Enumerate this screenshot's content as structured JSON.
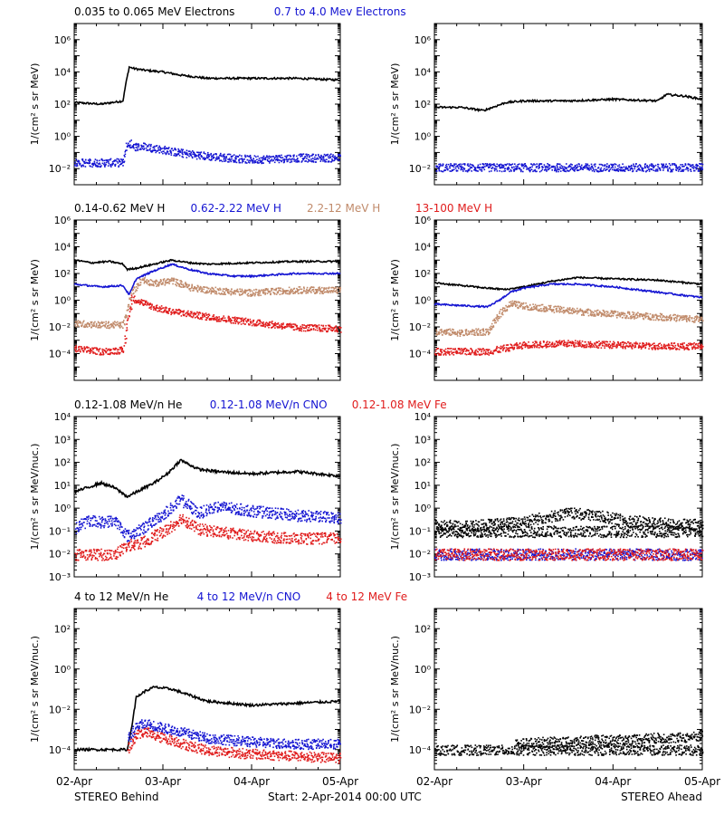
{
  "footer": {
    "left_label": "STEREO Behind",
    "center_label": "Start:  2-Apr-2014 00:00 UTC",
    "right_label": "STEREO Ahead"
  },
  "colors": {
    "black": "#000000",
    "blue": "#1414d2",
    "tan": "#c08a6a",
    "red": "#e01c1c"
  },
  "chart_data": [
    {
      "id": "electrons",
      "type": "scatter",
      "ylabel": "1/(cm² s sr MeV)",
      "ylim_log10": [
        -3,
        7
      ],
      "ytick_exponents": [
        -2,
        0,
        2,
        4,
        6
      ],
      "y_scale": "log",
      "x_tick_labels": [
        "02-Apr",
        "03-Apr",
        "04-Apr",
        "05-Apr"
      ],
      "x_range_days": [
        0,
        3
      ],
      "legend": [
        {
          "label": "0.035 to 0.065 MeV Electrons",
          "color": "black"
        },
        {
          "label": "0.7 to 4.0 Mev Electrons",
          "color": "blue"
        }
      ],
      "panels": [
        {
          "spacecraft": "STEREO Behind",
          "series": [
            {
              "color": "black",
              "style": "line",
              "x": [
                0,
                0.3,
                0.55,
                0.58,
                0.62,
                0.68,
                0.8,
                1.0,
                1.2,
                1.5,
                2.0,
                2.5,
                3.0
              ],
              "y_log10": [
                2.1,
                2.0,
                2.2,
                3.2,
                4.3,
                4.2,
                4.1,
                4.0,
                3.8,
                3.6,
                3.6,
                3.6,
                3.5
              ]
            },
            {
              "color": "blue",
              "style": "dots",
              "x": [
                0,
                0.3,
                0.55,
                0.58,
                0.62,
                0.68,
                0.8,
                1.0,
                1.2,
                1.5,
                2.0,
                2.5,
                3.0
              ],
              "y_log10": [
                -1.6,
                -1.6,
                -1.6,
                -0.6,
                -0.4,
                -0.6,
                -0.6,
                -0.8,
                -1.0,
                -1.2,
                -1.4,
                -1.3,
                -1.3
              ]
            }
          ]
        },
        {
          "spacecraft": "STEREO Ahead",
          "series": [
            {
              "color": "black",
              "style": "line",
              "x": [
                0,
                0.3,
                0.55,
                0.6,
                0.8,
                1.0,
                1.5,
                2.0,
                2.5,
                2.6,
                2.8,
                3.0
              ],
              "y_log10": [
                1.8,
                1.8,
                1.6,
                1.7,
                2.1,
                2.2,
                2.2,
                2.3,
                2.2,
                2.6,
                2.5,
                2.3
              ]
            },
            {
              "color": "blue",
              "style": "dots",
              "x": [
                0,
                0.5,
                1.0,
                1.5,
                2.0,
                2.5,
                3.0
              ],
              "y_log10": [
                -1.9,
                -1.9,
                -1.9,
                -1.9,
                -1.9,
                -1.9,
                -1.9
              ]
            }
          ]
        }
      ]
    },
    {
      "id": "protons",
      "type": "scatter",
      "ylabel": "1/(cm² s sr MeV)",
      "ylim_log10": [
        -6,
        6
      ],
      "ytick_exponents": [
        -4,
        -2,
        0,
        2,
        4,
        6
      ],
      "y_scale": "log",
      "x_tick_labels": [
        "02-Apr",
        "03-Apr",
        "04-Apr",
        "05-Apr"
      ],
      "x_range_days": [
        0,
        3
      ],
      "legend": [
        {
          "label": "0.14-0.62 MeV H",
          "color": "black"
        },
        {
          "label": "0.62-2.22 MeV H",
          "color": "blue"
        },
        {
          "label": "2.2-12 MeV H",
          "color": "tan"
        },
        {
          "label": "13-100 MeV H",
          "color": "red"
        }
      ],
      "panels": [
        {
          "spacecraft": "STEREO Behind",
          "series": [
            {
              "color": "black",
              "style": "line",
              "x": [
                0,
                0.2,
                0.4,
                0.55,
                0.6,
                0.7,
                0.9,
                1.1,
                1.3,
                1.5,
                2.0,
                2.5,
                3.0
              ],
              "y_log10": [
                3.0,
                2.8,
                2.9,
                2.7,
                2.3,
                2.4,
                2.7,
                3.0,
                2.8,
                2.7,
                2.8,
                2.9,
                2.9
              ]
            },
            {
              "color": "blue",
              "style": "line",
              "x": [
                0,
                0.3,
                0.55,
                0.62,
                0.7,
                0.9,
                1.1,
                1.3,
                1.5,
                1.8,
                2.0,
                2.5,
                3.0
              ],
              "y_log10": [
                1.2,
                1.0,
                1.1,
                0.4,
                1.6,
                2.2,
                2.7,
                2.3,
                2.0,
                1.8,
                1.8,
                2.0,
                2.0
              ]
            },
            {
              "color": "tan",
              "style": "dots",
              "x": [
                0,
                0.3,
                0.55,
                0.6,
                0.65,
                0.75,
                0.9,
                1.1,
                1.3,
                1.5,
                2.0,
                2.5,
                3.0
              ],
              "y_log10": [
                -1.7,
                -1.8,
                -1.8,
                -0.6,
                0.6,
                1.6,
                1.3,
                1.5,
                1.0,
                0.8,
                0.6,
                0.8,
                0.8
              ]
            },
            {
              "color": "red",
              "style": "dots",
              "x": [
                0,
                0.3,
                0.55,
                0.6,
                0.65,
                0.75,
                0.9,
                1.1,
                1.3,
                1.5,
                2.0,
                2.5,
                3.0
              ],
              "y_log10": [
                -3.6,
                -3.8,
                -3.7,
                -1.5,
                0.2,
                -0.1,
                -0.5,
                -0.8,
                -1.0,
                -1.2,
                -1.6,
                -2.0,
                -2.1
              ]
            }
          ]
        },
        {
          "spacecraft": "STEREO Ahead",
          "series": [
            {
              "color": "black",
              "style": "line",
              "x": [
                0,
                0.3,
                0.6,
                0.8,
                1.0,
                1.3,
                1.6,
                2.0,
                2.5,
                3.0
              ],
              "y_log10": [
                1.3,
                1.1,
                0.9,
                0.8,
                1.0,
                1.4,
                1.7,
                1.6,
                1.5,
                1.2
              ]
            },
            {
              "color": "blue",
              "style": "line",
              "x": [
                0,
                0.3,
                0.6,
                0.75,
                0.85,
                1.0,
                1.3,
                1.6,
                2.0,
                2.5,
                3.0
              ],
              "y_log10": [
                -0.3,
                -0.4,
                -0.5,
                0.1,
                0.6,
                0.9,
                1.2,
                1.2,
                1.0,
                0.6,
                0.2
              ]
            },
            {
              "color": "tan",
              "style": "dots",
              "x": [
                0,
                0.3,
                0.6,
                0.75,
                0.85,
                1.0,
                1.3,
                1.6,
                2.0,
                2.5,
                3.0
              ],
              "y_log10": [
                -2.3,
                -2.4,
                -2.3,
                -0.8,
                -0.2,
                -0.4,
                -0.6,
                -0.8,
                -1.0,
                -1.2,
                -1.4
              ]
            },
            {
              "color": "red",
              "style": "dots",
              "x": [
                0,
                0.3,
                0.6,
                0.75,
                1.0,
                1.5,
                2.0,
                2.5,
                3.0
              ],
              "y_log10": [
                -3.8,
                -3.8,
                -3.8,
                -3.6,
                -3.3,
                -3.2,
                -3.3,
                -3.4,
                -3.4
              ]
            }
          ]
        }
      ]
    },
    {
      "id": "heavy_ions_low",
      "type": "scatter",
      "ylabel": "1/(cm² s sr MeV/nuc.)",
      "ylim_log10": [
        -3,
        4
      ],
      "ytick_exponents": [
        -3,
        -2,
        -1,
        0,
        1,
        2,
        3,
        4
      ],
      "y_scale": "log",
      "x_tick_labels": [
        "02-Apr",
        "03-Apr",
        "04-Apr",
        "05-Apr"
      ],
      "x_range_days": [
        0,
        3
      ],
      "legend": [
        {
          "label": "0.12-1.08 MeV/n He",
          "color": "black"
        },
        {
          "label": "0.12-1.08 MeV/n CNO",
          "color": "blue"
        },
        {
          "label": "0.12-1.08 MeV Fe",
          "color": "red"
        }
      ],
      "panels": [
        {
          "spacecraft": "STEREO Behind",
          "series": [
            {
              "color": "black",
              "style": "line",
              "x": [
                0,
                0.15,
                0.3,
                0.45,
                0.6,
                0.75,
                0.9,
                1.05,
                1.2,
                1.4,
                1.6,
                2.0,
                2.5,
                3.0
              ],
              "y_log10": [
                0.7,
                0.9,
                1.1,
                0.9,
                0.5,
                0.8,
                1.1,
                1.5,
                2.1,
                1.7,
                1.6,
                1.5,
                1.6,
                1.4
              ]
            },
            {
              "color": "blue",
              "style": "dots",
              "x": [
                0,
                0.15,
                0.3,
                0.45,
                0.6,
                0.75,
                0.9,
                1.05,
                1.2,
                1.4,
                1.6,
                2.0,
                2.5,
                3.0
              ],
              "y_log10": [
                -0.9,
                -0.5,
                -0.6,
                -0.5,
                -1.2,
                -0.9,
                -0.5,
                -0.1,
                0.4,
                -0.2,
                0.1,
                -0.1,
                -0.3,
                -0.4
              ]
            },
            {
              "color": "red",
              "style": "dots",
              "x": [
                0,
                0.15,
                0.3,
                0.45,
                0.6,
                0.75,
                0.9,
                1.05,
                1.2,
                1.4,
                1.6,
                2.0,
                2.5,
                3.0
              ],
              "y_log10": [
                -2.0,
                -2.0,
                -2.0,
                -2.0,
                -1.6,
                -1.5,
                -1.2,
                -0.9,
                -0.4,
                -0.9,
                -1.0,
                -1.2,
                -1.3,
                -1.3
              ]
            }
          ]
        },
        {
          "spacecraft": "STEREO Ahead",
          "series": [
            {
              "color": "black",
              "style": "dots",
              "x": [
                0,
                0.3,
                0.6,
                0.9,
                1.2,
                1.5,
                1.8,
                2.1,
                2.4,
                2.7,
                3.0
              ],
              "y_log10": [
                -0.7,
                -0.8,
                -0.7,
                -0.6,
                -0.4,
                -0.2,
                -0.3,
                -0.5,
                -0.6,
                -0.7,
                -0.7
              ]
            },
            {
              "color": "black",
              "style": "dots",
              "x": [
                0,
                0.5,
                1.0,
                1.5,
                2.0,
                2.5,
                3.0
              ],
              "y_log10": [
                -1.0,
                -1.0,
                -1.0,
                -1.0,
                -1.0,
                -1.0,
                -1.0
              ]
            },
            {
              "color": "blue",
              "style": "dots",
              "x": [
                0,
                0.5,
                1.0,
                1.5,
                2.0,
                2.5,
                3.0
              ],
              "y_log10": [
                -2.0,
                -2.0,
                -2.0,
                -2.0,
                -2.0,
                -2.0,
                -2.0
              ]
            },
            {
              "color": "red",
              "style": "dots",
              "x": [
                0,
                0.5,
                1.0,
                1.5,
                2.0,
                2.5,
                3.0
              ],
              "y_log10": [
                -2.0,
                -2.0,
                -2.0,
                -2.0,
                -2.0,
                -2.0,
                -2.0
              ]
            }
          ]
        }
      ]
    },
    {
      "id": "heavy_ions_high",
      "type": "scatter",
      "ylabel": "1/(cm² s sr MeV/nuc.)",
      "ylim_log10": [
        -5,
        3
      ],
      "ytick_exponents": [
        -4,
        -2,
        0,
        2
      ],
      "y_scale": "log",
      "x_tick_labels": [
        "02-Apr",
        "03-Apr",
        "04-Apr",
        "05-Apr"
      ],
      "x_range_days": [
        0,
        3
      ],
      "legend": [
        {
          "label": "4 to 12 MeV/n He",
          "color": "black"
        },
        {
          "label": "4 to 12 MeV/n CNO",
          "color": "blue"
        },
        {
          "label": "4 to 12 MeV Fe",
          "color": "red"
        }
      ],
      "panels": [
        {
          "spacecraft": "STEREO Behind",
          "series": [
            {
              "color": "black",
              "style": "line",
              "x": [
                0,
                0.3,
                0.6,
                0.65,
                0.7,
                0.8,
                0.9,
                1.1,
                1.3,
                1.5,
                2.0,
                2.5,
                3.0
              ],
              "y_log10": [
                -4.0,
                -4.0,
                -4.0,
                -2.8,
                -1.4,
                -1.1,
                -0.9,
                -1.0,
                -1.3,
                -1.6,
                -1.8,
                -1.7,
                -1.6
              ]
            },
            {
              "color": "blue",
              "style": "dots",
              "x": [
                0.6,
                0.7,
                0.8,
                0.9,
                1.1,
                1.3,
                1.5,
                2.0,
                2.5,
                3.0
              ],
              "y_log10": [
                -3.5,
                -2.8,
                -2.7,
                -2.8,
                -3.0,
                -3.2,
                -3.4,
                -3.6,
                -3.7,
                -3.7
              ]
            },
            {
              "color": "red",
              "style": "dots",
              "x": [
                0.6,
                0.7,
                0.8,
                0.9,
                1.1,
                1.3,
                1.5,
                2.0,
                2.5,
                3.0
              ],
              "y_log10": [
                -4.0,
                -3.2,
                -3.1,
                -3.3,
                -3.5,
                -3.8,
                -4.0,
                -4.2,
                -4.3,
                -4.4
              ]
            }
          ]
        },
        {
          "spacecraft": "STEREO Ahead",
          "series": [
            {
              "color": "black",
              "style": "dots",
              "x": [
                0,
                0.3,
                0.55,
                0.8,
                1.1,
                1.4,
                1.7,
                2.0,
                2.3,
                2.6,
                3.0
              ],
              "y_log10": [
                -4.0,
                -4.0,
                -4.0,
                -4.0,
                -4.0,
                -4.0,
                -4.0,
                -4.0,
                -4.0,
                -4.0,
                -4.0
              ]
            },
            {
              "color": "black",
              "style": "dots",
              "x": [
                0.9,
                1.2,
                1.5,
                1.8,
                2.1,
                2.4,
                2.7,
                3.0
              ],
              "y_log10": [
                -3.7,
                -3.6,
                -3.6,
                -3.5,
                -3.5,
                -3.4,
                -3.4,
                -3.3
              ]
            }
          ]
        }
      ]
    }
  ]
}
